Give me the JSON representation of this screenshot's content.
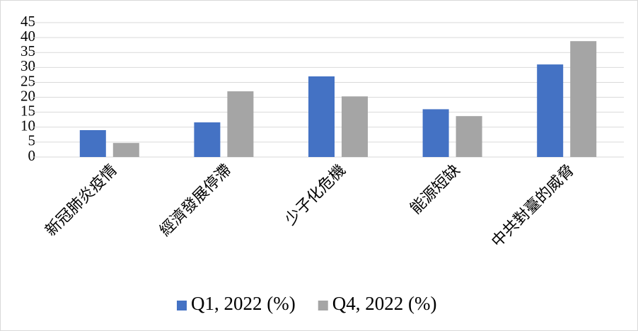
{
  "chart_data": {
    "type": "bar",
    "categories": [
      "新冠肺炎疫情",
      "經濟發展停滯",
      "少子化危機",
      "能源短缺",
      "中共對臺的威脅"
    ],
    "series": [
      {
        "name": "Q1, 2022 (%)",
        "color": "#4472c4",
        "values": [
          9,
          11.6,
          27,
          16,
          31
        ]
      },
      {
        "name": "Q4, 2022 (%)",
        "color": "#a5a5a5",
        "values": [
          4.7,
          22,
          20.3,
          13.7,
          38.8
        ]
      }
    ],
    "ylim": [
      0,
      45
    ],
    "yticks": [
      0,
      5,
      10,
      15,
      20,
      25,
      30,
      35,
      40,
      45
    ],
    "grid": true,
    "legend": "bottom"
  }
}
